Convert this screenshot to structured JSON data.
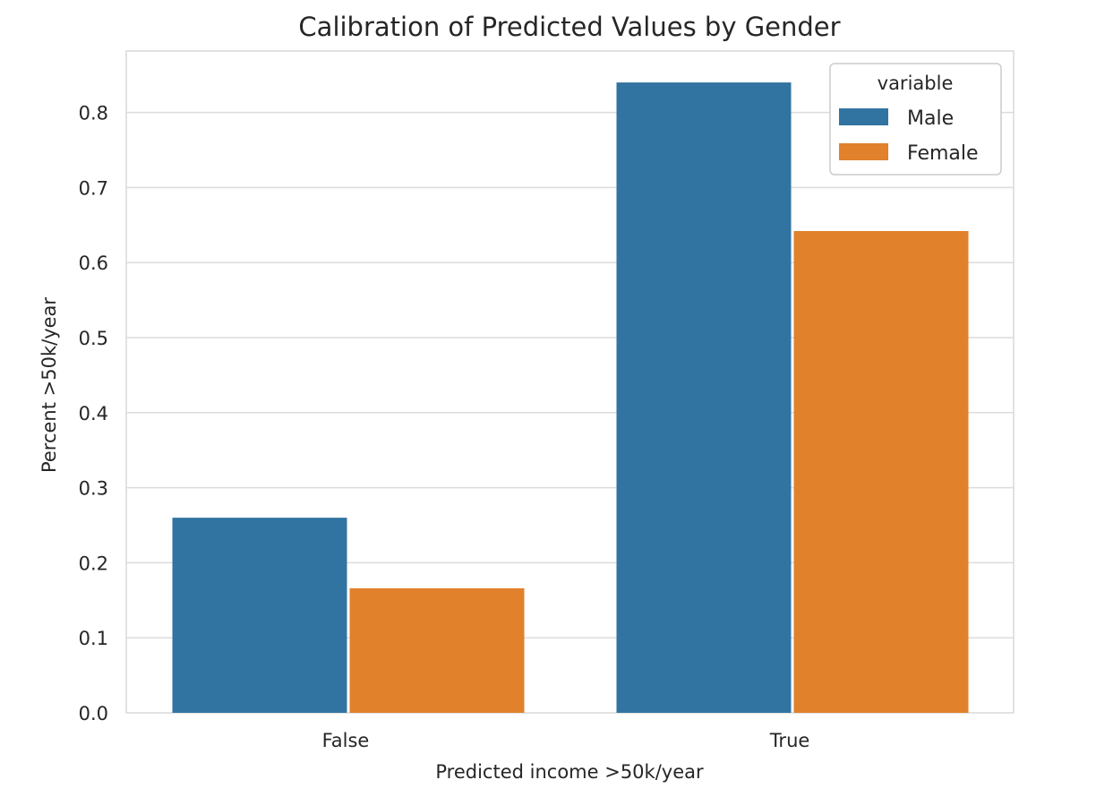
{
  "chart_data": {
    "type": "bar",
    "title": "Calibration of Predicted Values by Gender",
    "xlabel": "Predicted income >50k/year",
    "ylabel": "Percent >50k/year",
    "categories": [
      "False",
      "True"
    ],
    "series": [
      {
        "name": "Male",
        "values": [
          0.26,
          0.84
        ],
        "color": "#3274a1"
      },
      {
        "name": "Female",
        "values": [
          0.166,
          0.642
        ],
        "color": "#e1812c"
      }
    ],
    "ylim": [
      0,
      0.88
    ],
    "yticks": [
      "0.0",
      "0.1",
      "0.2",
      "0.3",
      "0.4",
      "0.5",
      "0.6",
      "0.7",
      "0.8"
    ],
    "grid": true,
    "legend": {
      "title": "variable",
      "placement": "top-right"
    }
  }
}
